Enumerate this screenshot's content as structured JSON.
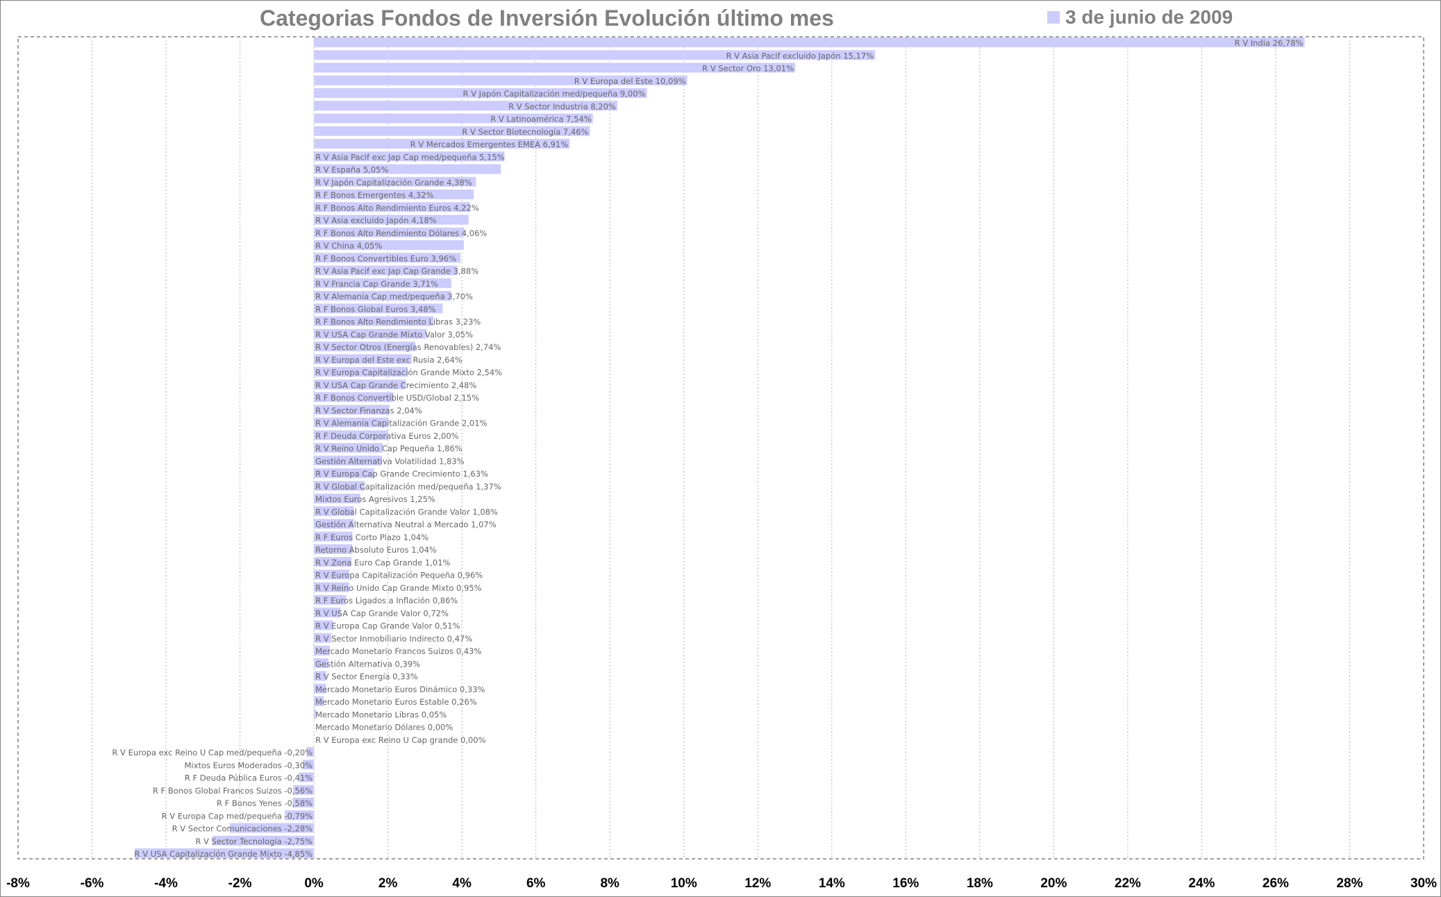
{
  "chart_data": {
    "type": "bar",
    "orientation": "horizontal",
    "title": "Categorias Fondos de Inversión Evolución último mes",
    "series": [
      {
        "name": "3 de junio de 2009",
        "color": "#ccccff",
        "items": [
          {
            "label": "R V India 26,78%",
            "value": 26.78
          },
          {
            "label": "R V Asia Pacif excluido Japón 15,17%",
            "value": 15.17
          },
          {
            "label": "R V Sector Oro 13,01%",
            "value": 13.01
          },
          {
            "label": "R V Europa del Este 10,09%",
            "value": 10.09
          },
          {
            "label": "R V Japón Capitalización med/pequeña 9,00%",
            "value": 9.0
          },
          {
            "label": "R V Sector Industria 8,20%",
            "value": 8.2
          },
          {
            "label": "R V Latinoamérica 7,54%",
            "value": 7.54
          },
          {
            "label": "R V Sector Biotecnología 7,46%",
            "value": 7.46
          },
          {
            "label": "R V Mercados Emergentes EMEA 6,91%",
            "value": 6.91
          },
          {
            "label": "R V Asia Pacif exc Jap Cap med/pequeña 5,15%",
            "value": 5.15
          },
          {
            "label": "R V España 5,05%",
            "value": 5.05
          },
          {
            "label": "R V Japón Capitalización Grande 4,38%",
            "value": 4.38
          },
          {
            "label": "R F Bonos Emergentes 4,32%",
            "value": 4.32
          },
          {
            "label": "R F Bonos Alto Rendimiento Euros 4,22%",
            "value": 4.22
          },
          {
            "label": "R V Asia excluido Japón 4,18%",
            "value": 4.18
          },
          {
            "label": "R F Bonos Alto Rendimiento Dólares 4,06%",
            "value": 4.06
          },
          {
            "label": "R V China 4,05%",
            "value": 4.05
          },
          {
            "label": "R F Bonos Convertibles Euro 3,96%",
            "value": 3.96
          },
          {
            "label": "R V Asia Pacif exc Jap Cap Grande 3,88%",
            "value": 3.88
          },
          {
            "label": "R V Francia Cap Grande 3,71%",
            "value": 3.71
          },
          {
            "label": "R V Alemania Cap med/pequeña 3,70%",
            "value": 3.7
          },
          {
            "label": "R F Bonos Global Euros 3,48%",
            "value": 3.48
          },
          {
            "label": "R F Bonos Alto Rendimiento Libras 3,23%",
            "value": 3.23
          },
          {
            "label": "R V USA Cap Grande Mixto Valor 3,05%",
            "value": 3.05
          },
          {
            "label": "R V Sector Otros (Energías Renovables) 2,74%",
            "value": 2.74
          },
          {
            "label": "R V Europa del Este exc Rusia 2,64%",
            "value": 2.64
          },
          {
            "label": "R V Europa Capitalización Grande Mixto 2,54%",
            "value": 2.54
          },
          {
            "label": "R V USA Cap Grande Crecimiento 2,48%",
            "value": 2.48
          },
          {
            "label": "R F Bonos Convertible USD/Global 2,15%",
            "value": 2.15
          },
          {
            "label": "R V Sector Finanzas 2,04%",
            "value": 2.04
          },
          {
            "label": "R V Alemania Capitalización Grande 2,01%",
            "value": 2.01
          },
          {
            "label": "R F Deuda Corporativa Euros 2,00%",
            "value": 2.0
          },
          {
            "label": "R V Reino Unido Cap Pequeña 1,86%",
            "value": 1.86
          },
          {
            "label": "Gestión Alternativa Volatilidad 1,83%",
            "value": 1.83
          },
          {
            "label": "R V Europa Cap Grande Crecimiento 1,63%",
            "value": 1.63
          },
          {
            "label": "R V Global Capitalización med/pequeña 1,37%",
            "value": 1.37
          },
          {
            "label": "Mixtos Euros Agresivos 1,25%",
            "value": 1.25
          },
          {
            "label": "R V Global Capitalización Grande Valor 1,08%",
            "value": 1.08
          },
          {
            "label": "Gestión Alternativa Neutral a Mercado 1,07%",
            "value": 1.07
          },
          {
            "label": "R F Euros Corto Plazo 1,04%",
            "value": 1.04
          },
          {
            "label": "Retorno Absoluto Euros 1,04%",
            "value": 1.04
          },
          {
            "label": "R V Zona Euro Cap Grande 1,01%",
            "value": 1.01
          },
          {
            "label": "R V Europa Capitalización Pequeña 0,96%",
            "value": 0.96
          },
          {
            "label": "R V Reino Unido Cap Grande Mixto 0,95%",
            "value": 0.95
          },
          {
            "label": "R F Euros Ligados a Inflación 0,86%",
            "value": 0.86
          },
          {
            "label": "R V USA Cap Grande Valor 0,72%",
            "value": 0.72
          },
          {
            "label": "R V Europa Cap Grande Valor 0,51%",
            "value": 0.51
          },
          {
            "label": "R V Sector Inmobiliario Indirecto 0,47%",
            "value": 0.47
          },
          {
            "label": "Mercado Monetario Francos Suizos 0,43%",
            "value": 0.43
          },
          {
            "label": "Gestión Alternativa 0,39%",
            "value": 0.39
          },
          {
            "label": "R V Sector Energía 0,33%",
            "value": 0.33
          },
          {
            "label": "Mercado Monetario Euros Dinámico 0,33%",
            "value": 0.33
          },
          {
            "label": "Mercado Monetario Euros Estable 0,26%",
            "value": 0.26
          },
          {
            "label": "Mercado Monetario Libras 0,05%",
            "value": 0.05
          },
          {
            "label": "Mercado Monetario Dólares 0,00%",
            "value": 0.0
          },
          {
            "label": "R V Europa exc Reino U Cap grande 0,00%",
            "value": 0.0
          },
          {
            "label": "R V Europa exc Reino U Cap med/pequeña -0,20%",
            "value": -0.2
          },
          {
            "label": "Mixtos Euros Moderados -0,30%",
            "value": -0.3
          },
          {
            "label": "R F Deuda Pública Euros -0,41%",
            "value": -0.41
          },
          {
            "label": "R F Bonos Global Francos Suizos -0,56%",
            "value": -0.56
          },
          {
            "label": "R F Bonos Yenes -0,58%",
            "value": -0.58
          },
          {
            "label": "R V Europa Cap med/pequeña -0,79%",
            "value": -0.79
          },
          {
            "label": "R V Sector Comunicaciones -2,28%",
            "value": -2.28
          },
          {
            "label": "R V Sector Tecnología -2,75%",
            "value": -2.75
          },
          {
            "label": "R V USA Capitalización Grande Mixto -4,85%",
            "value": -4.85
          }
        ]
      }
    ],
    "xlim": [
      -8,
      30
    ],
    "xticks": [
      "-8%",
      "-6%",
      "-4%",
      "-2%",
      "0%",
      "2%",
      "4%",
      "6%",
      "8%",
      "10%",
      "12%",
      "14%",
      "16%",
      "18%",
      "20%",
      "22%",
      "24%",
      "26%",
      "28%",
      "30%"
    ],
    "grid": "vertical-dotted",
    "legend": "top-right"
  }
}
